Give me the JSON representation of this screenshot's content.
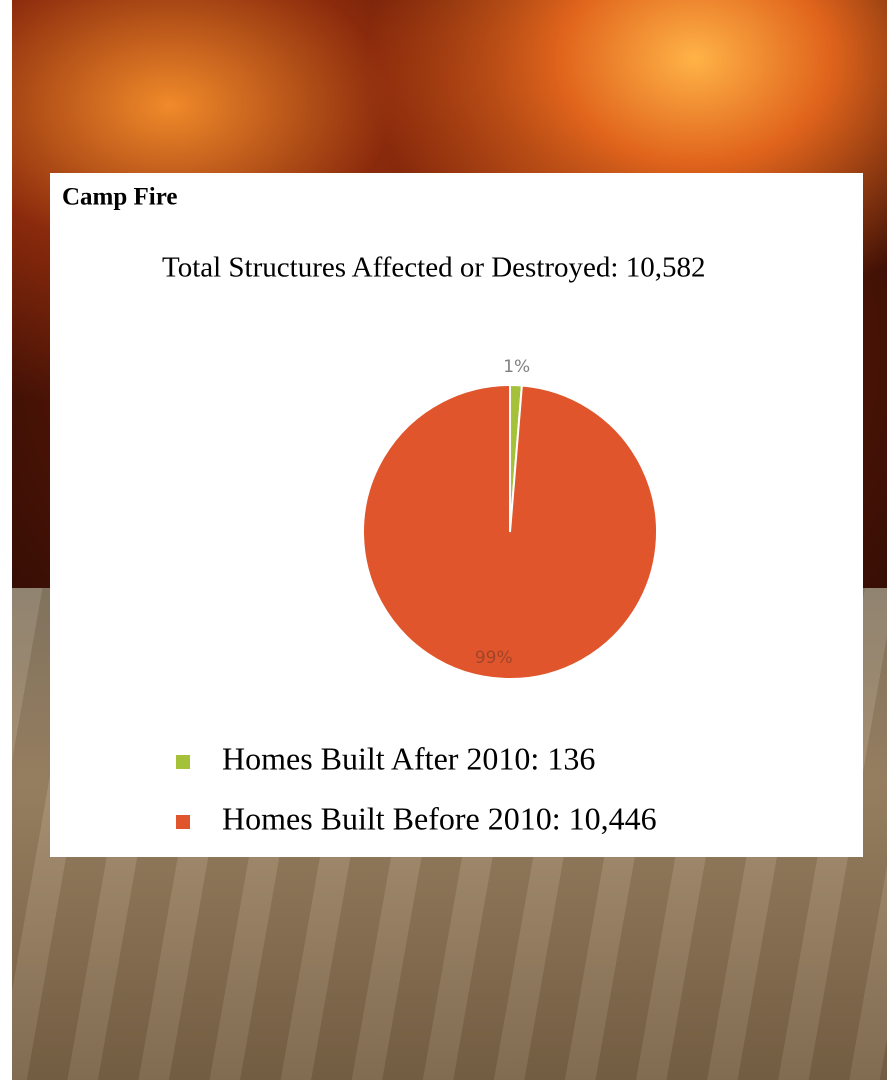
{
  "chart_data": {
    "type": "pie",
    "title": "Camp Fire",
    "subtitle": "Total Structures Affected or Destroyed: 10,582",
    "categories": [
      "Homes Built After 2010: 136",
      "Homes Built Before 2010: 10,446"
    ],
    "values": [
      1.29,
      98.71
    ],
    "value_labels": [
      "1%",
      "99%"
    ],
    "colors": [
      "#a5c13a",
      "#e0552b"
    ]
  }
}
